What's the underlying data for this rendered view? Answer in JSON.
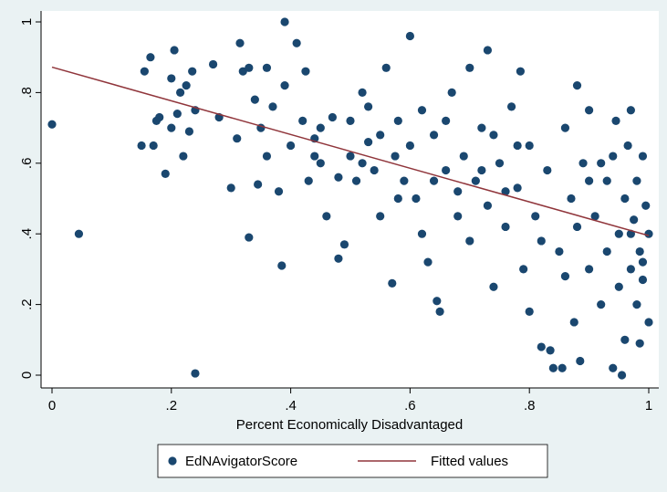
{
  "chart_data": {
    "type": "scatter",
    "xlabel": "Percent Economically Disadvantaged",
    "xlim": [
      0,
      1
    ],
    "ylim": [
      0,
      1
    ],
    "xticks": [
      0,
      {
        "value": 0.2,
        "label": ".2"
      },
      {
        "value": 0.4,
        "label": ".4"
      },
      {
        "value": 0.6,
        "label": ".6"
      },
      {
        "value": 0.8,
        "label": ".8"
      },
      1
    ],
    "yticks": [
      0,
      {
        "value": 0.2,
        "label": ".2"
      },
      {
        "value": 0.4,
        "label": ".4"
      },
      {
        "value": 0.6,
        "label": ".6"
      },
      {
        "value": 0.8,
        "label": ".8"
      },
      1
    ],
    "series": [
      {
        "name": "EdNAvigatorScore",
        "type": "scatter",
        "color": "#1a476f",
        "x": [
          0.0,
          0.045,
          0.15,
          0.155,
          0.165,
          0.17,
          0.175,
          0.18,
          0.19,
          0.2,
          0.2,
          0.205,
          0.21,
          0.215,
          0.22,
          0.225,
          0.23,
          0.235,
          0.24,
          0.24,
          0.28,
          0.3,
          0.31,
          0.315,
          0.32,
          0.33,
          0.33,
          0.34,
          0.345,
          0.35,
          0.36,
          0.37,
          0.38,
          0.385,
          0.39,
          0.39,
          0.4,
          0.41,
          0.42,
          0.425,
          0.43,
          0.44,
          0.45,
          0.46,
          0.47,
          0.48,
          0.49,
          0.5,
          0.5,
          0.51,
          0.52,
          0.53,
          0.54,
          0.55,
          0.56,
          0.57,
          0.575,
          0.58,
          0.59,
          0.6,
          0.6,
          0.61,
          0.62,
          0.63,
          0.64,
          0.645,
          0.65,
          0.66,
          0.67,
          0.68,
          0.69,
          0.7,
          0.7,
          0.71,
          0.72,
          0.73,
          0.73,
          0.74,
          0.75,
          0.76,
          0.77,
          0.78,
          0.785,
          0.79,
          0.8,
          0.8,
          0.81,
          0.82,
          0.83,
          0.835,
          0.84,
          0.85,
          0.855,
          0.86,
          0.87,
          0.875,
          0.88,
          0.885,
          0.89,
          0.9,
          0.9,
          0.91,
          0.92,
          0.92,
          0.93,
          0.93,
          0.94,
          0.945,
          0.95,
          0.95,
          0.955,
          0.96,
          0.96,
          0.965,
          0.97,
          0.97,
          0.975,
          0.98,
          0.98,
          0.985,
          0.985,
          0.99,
          0.99,
          0.995,
          1.0,
          1.0,
          0.72,
          0.68,
          0.66,
          0.55,
          0.52,
          0.48,
          0.45,
          0.62,
          0.64,
          0.76,
          0.82,
          0.86,
          0.88,
          0.9,
          0.94,
          0.97,
          0.99,
          0.78,
          0.74,
          0.58,
          0.53,
          0.44,
          0.36,
          0.27
        ],
        "values": [
          0.71,
          0.4,
          0.65,
          0.86,
          0.9,
          0.65,
          0.72,
          0.73,
          0.57,
          0.7,
          0.84,
          0.92,
          0.74,
          0.8,
          0.62,
          0.82,
          0.69,
          0.86,
          0.75,
          0.005,
          0.73,
          0.53,
          0.67,
          0.94,
          0.86,
          0.87,
          0.39,
          0.78,
          0.54,
          0.7,
          0.87,
          0.76,
          0.52,
          0.31,
          0.82,
          1.0,
          0.65,
          0.94,
          0.72,
          0.86,
          0.55,
          0.67,
          0.6,
          0.45,
          0.73,
          0.33,
          0.37,
          0.62,
          0.72,
          0.55,
          0.8,
          0.66,
          0.58,
          0.45,
          0.87,
          0.26,
          0.62,
          0.72,
          0.55,
          0.96,
          0.65,
          0.5,
          0.75,
          0.32,
          0.68,
          0.21,
          0.18,
          0.58,
          0.8,
          0.45,
          0.62,
          0.87,
          0.38,
          0.55,
          0.7,
          0.92,
          0.48,
          0.25,
          0.6,
          0.42,
          0.76,
          0.53,
          0.86,
          0.3,
          0.65,
          0.18,
          0.45,
          0.08,
          0.58,
          0.07,
          0.02,
          0.35,
          0.02,
          0.7,
          0.5,
          0.15,
          0.82,
          0.04,
          0.6,
          0.3,
          0.75,
          0.45,
          0.2,
          0.6,
          0.55,
          0.35,
          0.02,
          0.72,
          0.4,
          0.25,
          0.0,
          0.5,
          0.1,
          0.65,
          0.3,
          0.75,
          0.44,
          0.2,
          0.55,
          0.09,
          0.35,
          0.62,
          0.27,
          0.48,
          0.15,
          0.4,
          0.58,
          0.52,
          0.72,
          0.68,
          0.6,
          0.56,
          0.7,
          0.4,
          0.55,
          0.52,
          0.38,
          0.28,
          0.42,
          0.55,
          0.62,
          0.4,
          0.32,
          0.65,
          0.68,
          0.5,
          0.76,
          0.62,
          0.62,
          0.88
        ]
      },
      {
        "name": "Fitted values",
        "type": "line",
        "color": "#90353b",
        "x": [
          0,
          1
        ],
        "values": [
          0.872,
          0.395
        ]
      }
    ]
  }
}
